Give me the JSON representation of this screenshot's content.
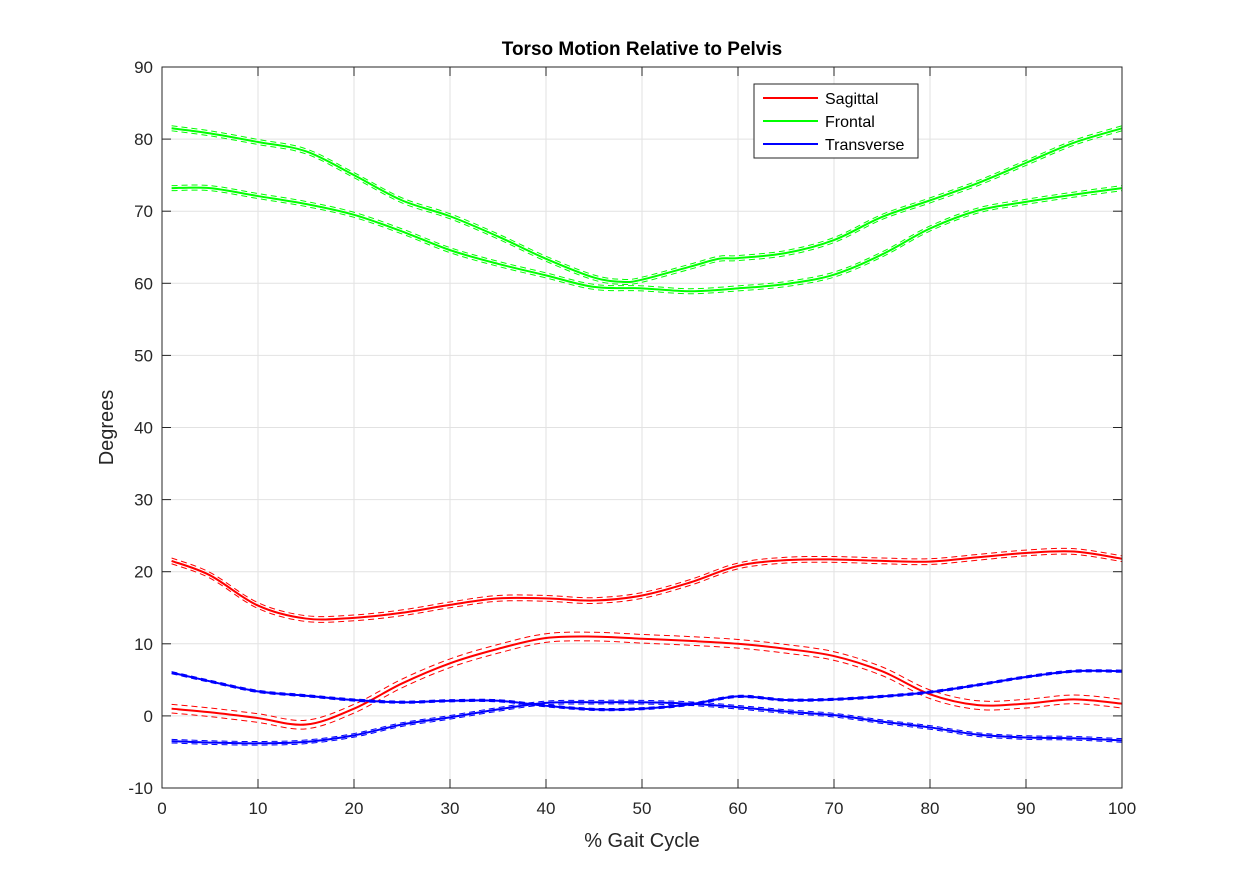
{
  "chart_data": {
    "type": "line",
    "title": "Torso Motion Relative to Pelvis",
    "xlabel": "% Gait Cycle",
    "ylabel": "Degrees",
    "xlim": [
      0,
      100
    ],
    "ylim": [
      -10,
      90
    ],
    "xticks": [
      "0",
      "10",
      "20",
      "30",
      "40",
      "50",
      "60",
      "70",
      "80",
      "90",
      "100"
    ],
    "yticks": [
      "-10",
      "0",
      "10",
      "20",
      "30",
      "40",
      "50",
      "60",
      "70",
      "80",
      "90"
    ],
    "grid": true,
    "legend_position": "top-right",
    "legend": [
      {
        "name": "Sagittal",
        "color": "#ff0000"
      },
      {
        "name": "Frontal",
        "color": "#00ff00"
      },
      {
        "name": "Transverse",
        "color": "#0000ff"
      }
    ],
    "series": [
      {
        "plane": "Sagittal",
        "color": "#ff0000",
        "x": [
          1,
          5,
          10,
          15,
          20,
          25,
          30,
          35,
          40,
          45,
          50,
          55,
          60,
          65,
          70,
          75,
          80,
          85,
          90,
          95,
          100
        ],
        "y": [
          21.5,
          19.5,
          15.3,
          13.5,
          13.6,
          14.3,
          15.4,
          16.3,
          16.3,
          16.0,
          16.7,
          18.5,
          20.8,
          21.6,
          21.7,
          21.5,
          21.4,
          22.0,
          22.6,
          22.8,
          21.8
        ],
        "band": 0.4
      },
      {
        "plane": "Sagittal",
        "color": "#ff0000",
        "x": [
          1,
          5,
          10,
          15,
          20,
          25,
          30,
          35,
          40,
          45,
          50,
          55,
          60,
          65,
          70,
          75,
          80,
          85,
          90,
          95,
          100
        ],
        "y": [
          1.0,
          0.5,
          -0.3,
          -1.2,
          1.0,
          4.5,
          7.3,
          9.3,
          10.8,
          11.0,
          10.7,
          10.4,
          10.0,
          9.3,
          8.3,
          6.2,
          3.0,
          1.5,
          1.7,
          2.3,
          1.7
        ],
        "band": 0.6
      },
      {
        "plane": "Frontal",
        "color": "#00ff00",
        "x": [
          1,
          5,
          10,
          15,
          20,
          25,
          30,
          35,
          40,
          45,
          48,
          50,
          55,
          58,
          60,
          65,
          70,
          75,
          80,
          85,
          90,
          95,
          100
        ],
        "y": [
          81.5,
          80.8,
          79.6,
          78.3,
          75.0,
          71.5,
          69.3,
          66.5,
          63.4,
          60.8,
          60.2,
          60.5,
          62.3,
          63.4,
          63.5,
          64.2,
          66.0,
          69.2,
          71.5,
          73.9,
          76.7,
          79.5,
          81.5
        ],
        "band": 0.35
      },
      {
        "plane": "Frontal",
        "color": "#00ff00",
        "x": [
          1,
          5,
          10,
          15,
          20,
          25,
          30,
          35,
          40,
          45,
          50,
          55,
          60,
          65,
          70,
          75,
          80,
          85,
          90,
          95,
          100
        ],
        "y": [
          73.2,
          73.2,
          72.1,
          71.0,
          69.5,
          67.2,
          64.6,
          62.7,
          61.1,
          59.5,
          59.3,
          58.9,
          59.3,
          59.9,
          61.2,
          64.0,
          67.6,
          70.1,
          71.3,
          72.3,
          73.2
        ],
        "band": 0.35
      },
      {
        "plane": "Transverse",
        "color": "#0000ff",
        "x": [
          1,
          5,
          10,
          15,
          20,
          25,
          30,
          35,
          40,
          45,
          50,
          55,
          60,
          65,
          70,
          75,
          80,
          85,
          90,
          95,
          100
        ],
        "y": [
          6.0,
          4.8,
          3.4,
          2.8,
          2.2,
          1.9,
          2.1,
          2.1,
          1.4,
          0.9,
          1.0,
          1.6,
          2.7,
          2.2,
          2.3,
          2.7,
          3.3,
          4.3,
          5.4,
          6.2,
          6.2
        ],
        "band": 0.15
      },
      {
        "plane": "Transverse",
        "color": "#0000ff",
        "x": [
          1,
          5,
          10,
          15,
          20,
          25,
          30,
          35,
          40,
          45,
          50,
          55,
          60,
          65,
          70,
          75,
          80,
          85,
          90,
          95,
          100
        ],
        "y": [
          -3.5,
          -3.7,
          -3.8,
          -3.6,
          -2.7,
          -1.2,
          -0.2,
          0.9,
          1.8,
          1.9,
          1.9,
          1.7,
          1.2,
          0.6,
          0.1,
          -0.8,
          -1.6,
          -2.6,
          -3.0,
          -3.1,
          -3.4
        ],
        "band": 0.25
      }
    ]
  }
}
